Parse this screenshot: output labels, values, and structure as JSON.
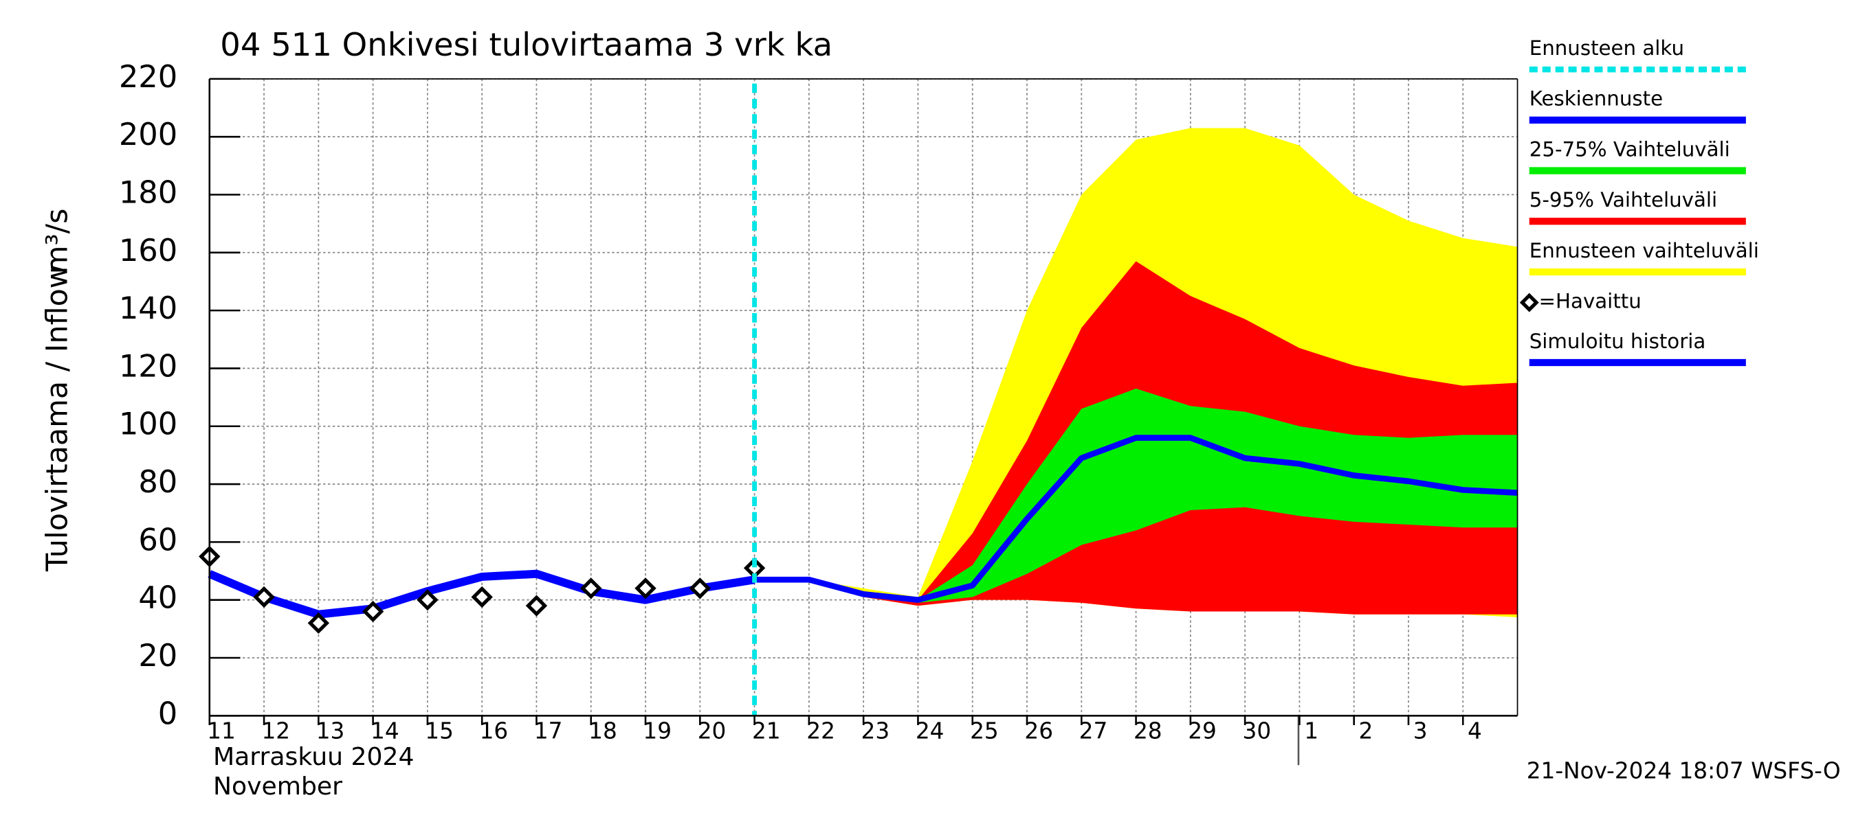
{
  "chart_data": {
    "type": "line",
    "title": "04 511 Onkivesi tulovirtaama 3 vrk ka",
    "y_label": "Tulovirtaama / Inflow",
    "y_unit": "m³/s",
    "x_label": [
      "Marraskuu 2024",
      "November"
    ],
    "timestamp": "21-Nov-2024 18:07 WSFS-O",
    "grid": true,
    "legend": "right",
    "xlim": [
      "2024-11-11",
      "2024-12-05"
    ],
    "ylim": [
      0,
      220
    ],
    "yticks": [
      0,
      20,
      40,
      60,
      80,
      100,
      120,
      140,
      160,
      180,
      200,
      220
    ],
    "xticks": [
      {
        "value": "2024-11-11",
        "label": "11"
      },
      {
        "value": "2024-11-12",
        "label": "12"
      },
      {
        "value": "2024-11-13",
        "label": "13"
      },
      {
        "value": "2024-11-14",
        "label": "14"
      },
      {
        "value": "2024-11-15",
        "label": "15"
      },
      {
        "value": "2024-11-16",
        "label": "16"
      },
      {
        "value": "2024-11-17",
        "label": "17"
      },
      {
        "value": "2024-11-18",
        "label": "18"
      },
      {
        "value": "2024-11-19",
        "label": "19"
      },
      {
        "value": "2024-11-20",
        "label": "20"
      },
      {
        "value": "2024-11-21",
        "label": "21"
      },
      {
        "value": "2024-11-22",
        "label": "22"
      },
      {
        "value": "2024-11-23",
        "label": "23"
      },
      {
        "value": "2024-11-24",
        "label": "24"
      },
      {
        "value": "2024-11-25",
        "label": "25"
      },
      {
        "value": "2024-11-26",
        "label": "26"
      },
      {
        "value": "2024-11-27",
        "label": "27"
      },
      {
        "value": "2024-11-28",
        "label": "28"
      },
      {
        "value": "2024-11-29",
        "label": "29"
      },
      {
        "value": "2024-11-30",
        "label": "30"
      },
      {
        "value": "2024-12-01",
        "label": "1"
      },
      {
        "value": "2024-12-02",
        "label": "2"
      },
      {
        "value": "2024-12-03",
        "label": "3"
      },
      {
        "value": "2024-12-04",
        "label": "4"
      }
    ],
    "series": [
      {
        "name": "Ennusteen alku",
        "kind": "vline",
        "color": "#00e5e5",
        "x": "2024-11-21"
      },
      {
        "name": "Keskiennuste",
        "kind": "line",
        "color": "#0000ff",
        "x": [
          "2024-11-21",
          "2024-11-22",
          "2024-11-23",
          "2024-11-24",
          "2024-11-25",
          "2024-11-26",
          "2024-11-27",
          "2024-11-28",
          "2024-11-29",
          "2024-11-30",
          "2024-12-01",
          "2024-12-02",
          "2024-12-03",
          "2024-12-04",
          "2024-12-05"
        ],
        "values": [
          47,
          47,
          42,
          40,
          45,
          68,
          89,
          96,
          96,
          89,
          87,
          83,
          81,
          78,
          77
        ]
      },
      {
        "name": "25-75% Vaihteluväli",
        "kind": "band",
        "color": "#00ee00",
        "x": [
          "2024-11-21",
          "2024-11-22",
          "2024-11-23",
          "2024-11-24",
          "2024-11-25",
          "2024-11-26",
          "2024-11-27",
          "2024-11-28",
          "2024-11-29",
          "2024-11-30",
          "2024-12-01",
          "2024-12-02",
          "2024-12-03",
          "2024-12-04",
          "2024-12-05"
        ],
        "lower": [
          47,
          46,
          41,
          39,
          41,
          49,
          59,
          64,
          71,
          72,
          69,
          67,
          66,
          65,
          65
        ],
        "upper": [
          47,
          47,
          42,
          40,
          52,
          80,
          106,
          113,
          107,
          105,
          100,
          97,
          96,
          97,
          97
        ]
      },
      {
        "name": "5-95% Vaihteluväli",
        "kind": "band",
        "color": "#ff0000",
        "x": [
          "2024-11-21",
          "2024-11-22",
          "2024-11-23",
          "2024-11-24",
          "2024-11-25",
          "2024-11-26",
          "2024-11-27",
          "2024-11-28",
          "2024-11-29",
          "2024-11-30",
          "2024-12-01",
          "2024-12-02",
          "2024-12-03",
          "2024-12-04",
          "2024-12-05"
        ],
        "lower": [
          47,
          46,
          41,
          38,
          40,
          40,
          39,
          37,
          36,
          36,
          36,
          35,
          35,
          35,
          35
        ],
        "upper": [
          47,
          47,
          43,
          40,
          63,
          95,
          134,
          157,
          145,
          137,
          127,
          121,
          117,
          114,
          115
        ]
      },
      {
        "name": "Ennusteen vaihteluväli",
        "kind": "band",
        "color": "#ffff00",
        "x": [
          "2024-11-21",
          "2024-11-22",
          "2024-11-23",
          "2024-11-24",
          "2024-11-25",
          "2024-11-26",
          "2024-11-27",
          "2024-11-28",
          "2024-11-29",
          "2024-11-30",
          "2024-12-01",
          "2024-12-02",
          "2024-12-03",
          "2024-12-04",
          "2024-12-05"
        ],
        "lower": [
          47,
          46,
          41,
          38,
          40,
          40,
          39,
          37,
          36,
          36,
          36,
          35,
          36,
          35,
          34
        ],
        "upper": [
          47,
          47,
          44,
          41,
          88,
          140,
          180,
          199,
          203,
          203,
          197,
          180,
          171,
          165,
          162
        ]
      },
      {
        "name": "=Havaittu",
        "kind": "points",
        "color": "#000000",
        "x": [
          "2024-11-11",
          "2024-11-12",
          "2024-11-13",
          "2024-11-14",
          "2024-11-15",
          "2024-11-16",
          "2024-11-17",
          "2024-11-18",
          "2024-11-19",
          "2024-11-20",
          "2024-11-21"
        ],
        "values": [
          55,
          41,
          32,
          36,
          40,
          41,
          38,
          44,
          44,
          44,
          51
        ]
      },
      {
        "name": "Simuloitu historia",
        "kind": "line",
        "color": "#0000ff",
        "x": [
          "2024-11-11",
          "2024-11-12",
          "2024-11-13",
          "2024-11-14",
          "2024-11-15",
          "2024-11-16",
          "2024-11-17",
          "2024-11-18",
          "2024-11-19",
          "2024-11-20",
          "2024-11-21"
        ],
        "values": [
          49,
          41,
          35,
          37,
          43,
          48,
          49,
          43,
          40,
          44,
          47
        ]
      }
    ]
  }
}
